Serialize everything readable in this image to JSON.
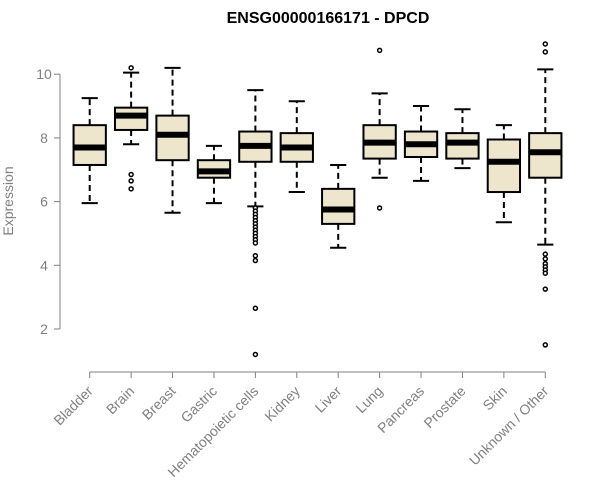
{
  "chart_data": {
    "type": "box",
    "title": "ENSG00000166171 - DPCD",
    "ylabel": "Expression",
    "xlabel": "",
    "ylim": [
      0.9,
      11.2
    ],
    "yticks": [
      2,
      4,
      6,
      8,
      10
    ],
    "colors": {
      "box_fill": "#ede6cc",
      "stroke": "#000000",
      "axis": "#808080"
    },
    "categories": [
      "Bladder",
      "Brain",
      "Breast",
      "Gastric",
      "Hematopoietic cells",
      "Kidney",
      "Liver",
      "Lung",
      "Pancreas",
      "Prostate",
      "Skin",
      "Unknown / Other"
    ],
    "boxes": [
      {
        "category": "Bladder",
        "whisker_low": 5.95,
        "q1": 7.15,
        "median": 7.7,
        "q3": 8.4,
        "whisker_high": 9.25,
        "outliers": []
      },
      {
        "category": "Brain",
        "whisker_low": 7.8,
        "q1": 8.25,
        "median": 8.7,
        "q3": 8.95,
        "whisker_high": 10.05,
        "outliers": [
          10.2,
          6.85,
          6.65,
          6.4
        ]
      },
      {
        "category": "Breast",
        "whisker_low": 5.65,
        "q1": 7.3,
        "median": 8.1,
        "q3": 8.7,
        "whisker_high": 10.2,
        "outliers": []
      },
      {
        "category": "Gastric",
        "whisker_low": 5.95,
        "q1": 6.75,
        "median": 6.95,
        "q3": 7.3,
        "whisker_high": 7.75,
        "outliers": []
      },
      {
        "category": "Hematopoietic cells",
        "whisker_low": 5.85,
        "q1": 7.25,
        "median": 7.75,
        "q3": 8.2,
        "whisker_high": 9.5,
        "outliers": [
          5.8,
          5.7,
          5.6,
          5.5,
          5.4,
          5.3,
          5.2,
          5.1,
          5.0,
          4.9,
          4.8,
          4.7,
          4.3,
          4.15,
          2.65,
          1.2
        ]
      },
      {
        "category": "Kidney",
        "whisker_low": 6.3,
        "q1": 7.25,
        "median": 7.7,
        "q3": 8.15,
        "whisker_high": 9.15,
        "outliers": []
      },
      {
        "category": "Liver",
        "whisker_low": 4.55,
        "q1": 5.3,
        "median": 5.75,
        "q3": 6.4,
        "whisker_high": 7.15,
        "outliers": []
      },
      {
        "category": "Lung",
        "whisker_low": 6.75,
        "q1": 7.35,
        "median": 7.85,
        "q3": 8.4,
        "whisker_high": 9.4,
        "outliers": [
          10.75,
          5.8
        ]
      },
      {
        "category": "Pancreas",
        "whisker_low": 6.65,
        "q1": 7.4,
        "median": 7.8,
        "q3": 8.2,
        "whisker_high": 9.0,
        "outliers": []
      },
      {
        "category": "Prostate",
        "whisker_low": 7.05,
        "q1": 7.35,
        "median": 7.85,
        "q3": 8.15,
        "whisker_high": 8.9,
        "outliers": []
      },
      {
        "category": "Skin",
        "whisker_low": 5.35,
        "q1": 6.3,
        "median": 7.25,
        "q3": 7.95,
        "whisker_high": 8.4,
        "outliers": []
      },
      {
        "category": "Unknown / Other",
        "whisker_low": 4.65,
        "q1": 6.75,
        "median": 7.55,
        "q3": 8.15,
        "whisker_high": 10.15,
        "outliers": [
          10.95,
          10.7,
          4.35,
          4.2,
          4.05,
          3.95,
          3.85,
          3.75,
          3.25,
          1.5
        ]
      }
    ]
  }
}
